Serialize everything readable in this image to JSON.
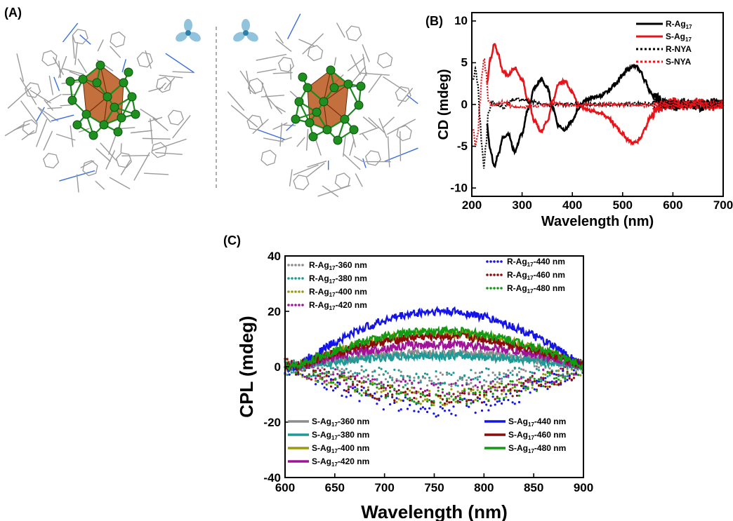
{
  "panels": {
    "A": {
      "label": "(A)"
    },
    "B": {
      "label": "(B)"
    },
    "C": {
      "label": "(C)"
    }
  },
  "chart_data": [
    {
      "id": "B",
      "type": "line",
      "title": "",
      "xlabel": "Wavelength (nm)",
      "ylabel": "CD (mdeg)",
      "xlim": [
        200,
        700
      ],
      "ylim": [
        -11,
        11
      ],
      "xticks": [
        200,
        300,
        400,
        500,
        600,
        700
      ],
      "yticks": [
        10,
        5,
        0,
        -5,
        -10
      ],
      "legend_position": "top-right",
      "series": [
        {
          "name": "R-Ag",
          "sub": "17",
          "color": "#000000",
          "style": "solid",
          "x": [
            230,
            237,
            245,
            252,
            262,
            272,
            285,
            300,
            312,
            325,
            338,
            350,
            362,
            372,
            385,
            400,
            412,
            425,
            440,
            455,
            470,
            485,
            500,
            510,
            520,
            528,
            535,
            545,
            555,
            565,
            580,
            600,
            620,
            650,
            680,
            700
          ],
          "y": [
            -2.5,
            -5.5,
            -7.5,
            -6.0,
            -4.0,
            -3.5,
            -5.6,
            -3.5,
            -0.5,
            2.0,
            3.0,
            2.0,
            -0.5,
            -2.5,
            -3.0,
            -2.0,
            -0.5,
            0.5,
            0.8,
            1.0,
            1.5,
            2.5,
            3.5,
            4.2,
            4.6,
            4.5,
            4.0,
            2.8,
            1.5,
            0.8,
            0.3,
            -0.3,
            0.2,
            -0.3,
            0.2,
            0.0
          ]
        },
        {
          "name": "S-Ag",
          "sub": "17",
          "color": "#e8141a",
          "style": "solid",
          "x": [
            230,
            237,
            245,
            252,
            262,
            272,
            285,
            300,
            312,
            325,
            338,
            350,
            362,
            372,
            385,
            400,
            412,
            425,
            440,
            455,
            470,
            485,
            500,
            510,
            520,
            528,
            535,
            545,
            555,
            565,
            580,
            600,
            620,
            650,
            680,
            700
          ],
          "y": [
            2.5,
            5.5,
            7.2,
            6.0,
            4.0,
            3.5,
            4.4,
            3.0,
            0.5,
            -2.0,
            -3.2,
            -2.0,
            0.5,
            2.5,
            2.8,
            1.5,
            0.0,
            -0.5,
            -0.8,
            -1.0,
            -1.5,
            -2.5,
            -3.5,
            -4.2,
            -4.6,
            -4.5,
            -4.0,
            -2.8,
            -1.5,
            -0.8,
            -0.3,
            0.4,
            -0.2,
            0.3,
            -0.2,
            0.0
          ]
        },
        {
          "name": "R-NYA",
          "sub": "",
          "color": "#000000",
          "style": "dotted",
          "x": [
            203,
            207,
            212,
            216,
            220,
            224,
            228,
            233,
            240,
            250,
            265,
            280,
            300,
            320,
            340,
            360,
            380,
            400,
            450,
            500,
            550,
            600
          ],
          "y": [
            3.0,
            4.2,
            2.5,
            -1.5,
            -5.0,
            -7.5,
            -5.0,
            -1.0,
            0.2,
            0.0,
            -0.3,
            0.5,
            0.6,
            0.3,
            0.1,
            -0.1,
            0.0,
            0.1,
            0.0,
            0.0,
            0.1,
            0.0
          ]
        },
        {
          "name": "S-NYA",
          "sub": "",
          "color": "#e8141a",
          "style": "dotted",
          "x": [
            203,
            207,
            212,
            216,
            220,
            224,
            228,
            233,
            240,
            250,
            265,
            280,
            300,
            320,
            340,
            360,
            380,
            400,
            450,
            500,
            550,
            600
          ],
          "y": [
            -3.0,
            -5.0,
            -3.5,
            0.0,
            3.5,
            5.5,
            4.0,
            0.5,
            -0.2,
            0.0,
            0.3,
            -0.3,
            -0.4,
            -0.2,
            -0.1,
            0.1,
            0.0,
            -0.1,
            0.0,
            0.0,
            -0.1,
            0.0
          ]
        }
      ]
    },
    {
      "id": "C",
      "type": "line",
      "title": "",
      "xlabel": "Wavelength (nm)",
      "ylabel": "CPL (mdeg)",
      "xlim": [
        600,
        900
      ],
      "ylim": [
        -40,
        40
      ],
      "xticks": [
        600,
        650,
        700,
        750,
        800,
        850,
        900
      ],
      "yticks": [
        40,
        20,
        0,
        -20,
        -40
      ],
      "legend_position": "top-left, top-right, bottom-left, bottom-right",
      "dotted_series": [
        {
          "name": "R-Ag",
          "sub": "17",
          "suffix": "-360 nm",
          "color": "#8c8c8c",
          "peak": 5
        },
        {
          "name": "R-Ag",
          "sub": "17",
          "suffix": "-380 nm",
          "color": "#1e9a96",
          "peak": 4
        },
        {
          "name": "R-Ag",
          "sub": "17",
          "suffix": "-400 nm",
          "color": "#9a9a10",
          "peak": 11
        },
        {
          "name": "R-Ag",
          "sub": "17",
          "suffix": "-420 nm",
          "color": "#a0149a",
          "peak": 8
        },
        {
          "name": "R-Ag",
          "sub": "17",
          "suffix": "-440 nm",
          "color": "#1414e6",
          "peak": 15
        },
        {
          "name": "R-Ag",
          "sub": "17",
          "suffix": "-460 nm",
          "color": "#8b0a0a",
          "peak": 11
        },
        {
          "name": "R-Ag",
          "sub": "17",
          "suffix": "-480 nm",
          "color": "#129a12",
          "peak": 11
        }
      ],
      "solid_series": [
        {
          "name": "S-Ag",
          "sub": "17",
          "suffix": "-360 nm",
          "color": "#8c8c8c",
          "peak": 5
        },
        {
          "name": "S-Ag",
          "sub": "17",
          "suffix": "-380 nm",
          "color": "#1e9a96",
          "peak": 4
        },
        {
          "name": "S-Ag",
          "sub": "17",
          "suffix": "-400 nm",
          "color": "#9a9a10",
          "peak": 12
        },
        {
          "name": "S-Ag",
          "sub": "17",
          "suffix": "-420 nm",
          "color": "#a0149a",
          "peak": 8
        },
        {
          "name": "S-Ag",
          "sub": "17",
          "suffix": "-440 nm",
          "color": "#1414e6",
          "peak": 20
        },
        {
          "name": "S-Ag",
          "sub": "17",
          "suffix": "-460 nm",
          "color": "#8b0a0a",
          "peak": 11
        },
        {
          "name": "S-Ag",
          "sub": "17",
          "suffix": "-480 nm",
          "color": "#129a12",
          "peak": 13
        }
      ]
    }
  ]
}
